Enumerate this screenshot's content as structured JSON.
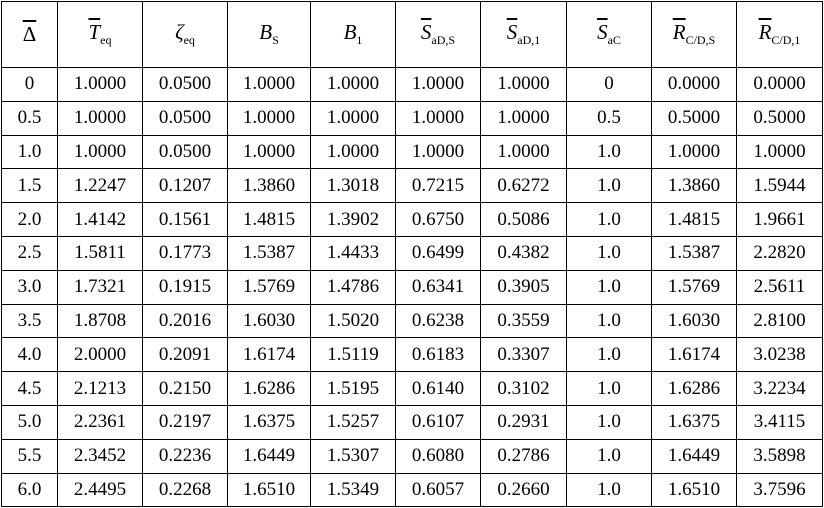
{
  "table": {
    "header": [
      {
        "base": "Δ",
        "sub": null,
        "overline": true,
        "italic": false
      },
      {
        "base": "T",
        "sub": "eq",
        "overline": true,
        "italic": true
      },
      {
        "base": "ζ",
        "sub": "eq",
        "overline": false,
        "italic": true
      },
      {
        "base": "B",
        "sub": "S",
        "overline": false,
        "italic": true
      },
      {
        "base": "B",
        "sub": "1",
        "overline": false,
        "italic": true
      },
      {
        "base": "S",
        "sub": "aD,S",
        "overline": true,
        "italic": true
      },
      {
        "base": "S",
        "sub": "aD,1",
        "overline": true,
        "italic": true
      },
      {
        "base": "S",
        "sub": "aC",
        "overline": true,
        "italic": true
      },
      {
        "base": "R",
        "sub": "C/D,S",
        "overline": true,
        "italic": true
      },
      {
        "base": "R",
        "sub": "C/D,1",
        "overline": true,
        "italic": true
      }
    ],
    "rows": [
      [
        "0",
        "1.0000",
        "0.0500",
        "1.0000",
        "1.0000",
        "1.0000",
        "1.0000",
        "0",
        "0.0000",
        "0.0000"
      ],
      [
        "0.5",
        "1.0000",
        "0.0500",
        "1.0000",
        "1.0000",
        "1.0000",
        "1.0000",
        "0.5",
        "0.5000",
        "0.5000"
      ],
      [
        "1.0",
        "1.0000",
        "0.0500",
        "1.0000",
        "1.0000",
        "1.0000",
        "1.0000",
        "1.0",
        "1.0000",
        "1.0000"
      ],
      [
        "1.5",
        "1.2247",
        "0.1207",
        "1.3860",
        "1.3018",
        "0.7215",
        "0.6272",
        "1.0",
        "1.3860",
        "1.5944"
      ],
      [
        "2.0",
        "1.4142",
        "0.1561",
        "1.4815",
        "1.3902",
        "0.6750",
        "0.5086",
        "1.0",
        "1.4815",
        "1.9661"
      ],
      [
        "2.5",
        "1.5811",
        "0.1773",
        "1.5387",
        "1.4433",
        "0.6499",
        "0.4382",
        "1.0",
        "1.5387",
        "2.2820"
      ],
      [
        "3.0",
        "1.7321",
        "0.1915",
        "1.5769",
        "1.4786",
        "0.6341",
        "0.3905",
        "1.0",
        "1.5769",
        "2.5611"
      ],
      [
        "3.5",
        "1.8708",
        "0.2016",
        "1.6030",
        "1.5020",
        "0.6238",
        "0.3559",
        "1.0",
        "1.6030",
        "2.8100"
      ],
      [
        "4.0",
        "2.0000",
        "0.2091",
        "1.6174",
        "1.5119",
        "0.6183",
        "0.3307",
        "1.0",
        "1.6174",
        "3.0238"
      ],
      [
        "4.5",
        "2.1213",
        "0.2150",
        "1.6286",
        "1.5195",
        "0.6140",
        "0.3102",
        "1.0",
        "1.6286",
        "3.2234"
      ],
      [
        "5.0",
        "2.2361",
        "0.2197",
        "1.6375",
        "1.5257",
        "0.6107",
        "0.2931",
        "1.0",
        "1.6375",
        "3.4115"
      ],
      [
        "5.5",
        "2.3452",
        "0.2236",
        "1.6449",
        "1.5307",
        "0.6080",
        "0.2786",
        "1.0",
        "1.6449",
        "3.5898"
      ],
      [
        "6.0",
        "2.4495",
        "0.2268",
        "1.6510",
        "1.5349",
        "0.6057",
        "0.2660",
        "1.0",
        "1.6510",
        "3.7596"
      ]
    ]
  }
}
